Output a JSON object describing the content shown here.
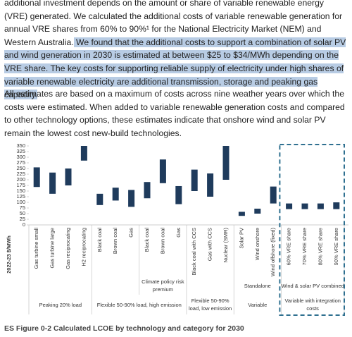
{
  "paragraphs": [
    [
      {
        "text": "additional investment depends on the amount or share of variable renewable energy (VRE) generated. We calculated the additional costs of variable renewable generation for annual VRE shares from 60% to 90%¹ for the National Electricity Market (NEM) and Western Australia.",
        "highlight": false
      },
      {
        "text": " We found that the additional costs to support a combination of solar PV and wind generation in 2030 is estimated at between $25 to $34/MWh depending on the VRE share. The key costs for supporting reliable supply of electricity under high shares of variable renewable electricity are additional transmission, storage and peaking gas capacity.",
        "highlight": true
      }
    ],
    [
      {
        "text": "All estimates are based on a maximum of costs across nine weather years over which the costs were estimated. When added to variable renewable generation costs and compared to other technology options, these estimates indicate that onshore wind and solar PV remain the lowest cost new-build technologies.",
        "highlight": false
      }
    ]
  ],
  "chart_data": {
    "type": "range-bar",
    "y_label": "2022-23 $/MWh",
    "color": "#1f3b5c",
    "ylim": [
      0,
      350
    ],
    "yticks": [
      0,
      25,
      50,
      75,
      100,
      125,
      150,
      175,
      200,
      225,
      250,
      275,
      300,
      325,
      350
    ],
    "box_color": "#2f7090",
    "groups": [
      {
        "label": "Peaking 20% load",
        "highlighted": false,
        "subgroups": [
          {
            "label": null,
            "categories": [
              "Gas turbine small",
              "Gas turbine large",
              "Gas reciprocating",
              "H2 reciprocating"
            ],
            "lows": [
              168,
              138,
              175,
              285
            ],
            "highs": [
              255,
              232,
              250,
              350
            ]
          }
        ]
      },
      {
        "label": "Flexible 50-90% load, high emission",
        "highlighted": false,
        "subgroups": [
          {
            "label": null,
            "categories": [
              "Black coal",
              "Brown coal",
              "Gas"
            ],
            "lows": [
              88,
              108,
              80
            ],
            "highs": [
              138,
              165,
              155
            ]
          },
          {
            "label": "Climate policy risk premium",
            "categories": [
              "Black coal",
              "Brown coal",
              "Gas"
            ],
            "lows": [
              118,
              185,
              92
            ],
            "highs": [
              190,
              290,
              172
            ]
          }
        ]
      },
      {
        "label": "Flexible 50-90% load, low emission",
        "highlighted": false,
        "subgroups": [
          {
            "label": null,
            "categories": [
              "Black coal with CCS",
              "Gas with CCS",
              "Nuclear (SMR)"
            ],
            "lows": [
              150,
              125,
              200
            ],
            "highs": [
              245,
              228,
              350
            ]
          }
        ]
      },
      {
        "label": "Variable",
        "highlighted": false,
        "subgroups": [
          {
            "label": "Standalone",
            "categories": [
              "Solar PV",
              "Wind onshore",
              "Wind offshore (fixed)"
            ],
            "lows": [
              40,
              50,
              95
            ],
            "highs": [
              58,
              72,
              170
            ]
          }
        ]
      },
      {
        "label": "Variable with integration costs",
        "highlighted": true,
        "subgroups": [
          {
            "label": "Wind & solar PV combined",
            "categories": [
              "60% VRE share",
              "70% VRE share",
              "80% VRE share",
              "90% VRE share"
            ],
            "lows": [
              70,
              70,
              70,
              70
            ],
            "highs": [
              95,
              95,
              95,
              100
            ]
          }
        ]
      }
    ]
  },
  "caption": "ES Figure 0-2 Calculated LCOE by technology and category for 2030"
}
